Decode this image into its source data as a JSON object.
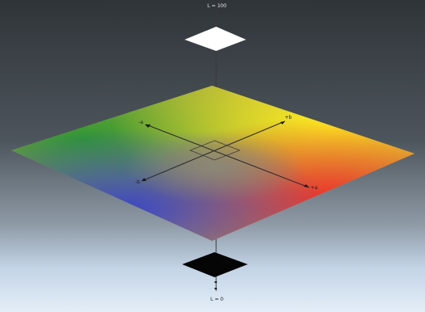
{
  "diagram": {
    "top_label": "L = 100",
    "bottom_label": "L = 0",
    "axis_labels": {
      "yellow": "+b",
      "green": "-a",
      "red": "+a",
      "blue": "-b"
    },
    "colors": {
      "backdrop_top": "#2f3438",
      "backdrop_bottom": "#e4eef8",
      "white_plane": "#ffffff",
      "black_plane": "#050505",
      "green": "#2f9a2f",
      "yellow": "#f2e21c",
      "red": "#e8322a",
      "blue": "#3a44c8",
      "axis": "#3a3a3a"
    }
  }
}
